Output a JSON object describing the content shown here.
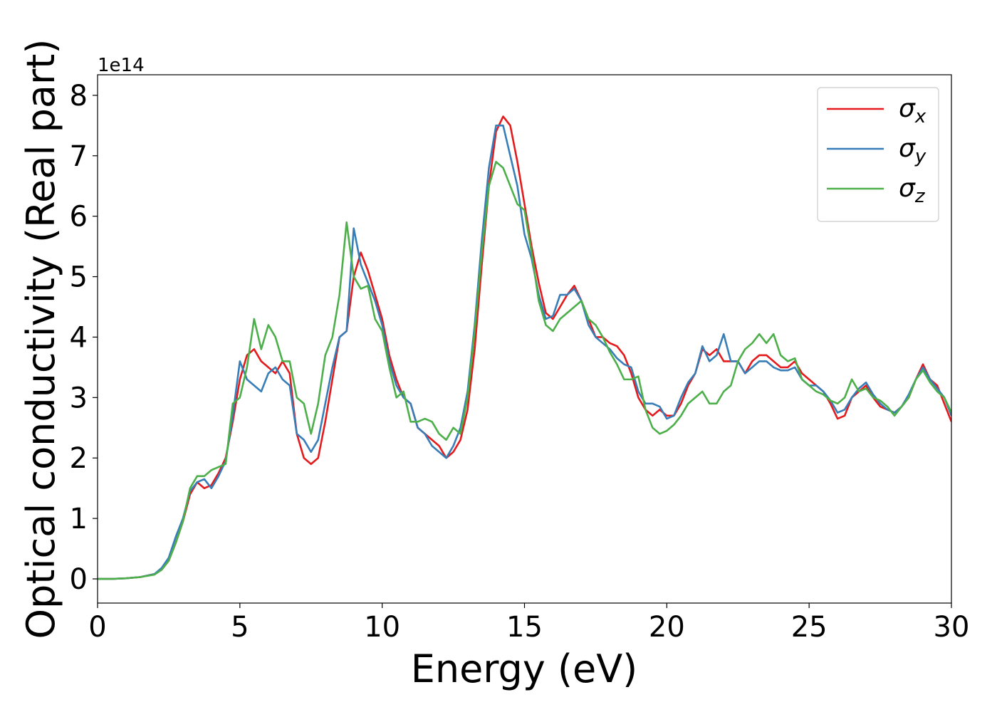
{
  "chart_data": {
    "type": "line",
    "xlabel": "Energy (eV)",
    "ylabel": "Optical conductivity (Real part)",
    "y_offset_label": "1e14",
    "xlim": [
      0,
      30
    ],
    "ylim": [
      -0.4,
      8.34
    ],
    "xticks": [
      0,
      5,
      10,
      15,
      20,
      25,
      30
    ],
    "yticks": [
      0,
      1,
      2,
      3,
      4,
      5,
      6,
      7,
      8
    ],
    "legend": "upper right",
    "grid": false,
    "x": [
      0,
      0.5,
      1,
      1.5,
      2,
      2.25,
      2.5,
      2.75,
      3,
      3.25,
      3.5,
      3.75,
      4,
      4.25,
      4.5,
      4.75,
      5,
      5.25,
      5.5,
      5.75,
      6,
      6.25,
      6.5,
      6.75,
      7,
      7.25,
      7.5,
      7.75,
      8,
      8.25,
      8.5,
      8.75,
      9,
      9.25,
      9.5,
      9.75,
      10,
      10.25,
      10.5,
      10.75,
      11,
      11.25,
      11.5,
      11.75,
      12,
      12.25,
      12.5,
      12.75,
      13,
      13.25,
      13.5,
      13.75,
      14,
      14.25,
      14.5,
      14.75,
      15,
      15.25,
      15.5,
      15.75,
      16,
      16.25,
      16.5,
      16.75,
      17,
      17.25,
      17.5,
      17.75,
      18,
      18.25,
      18.5,
      18.75,
      19,
      19.25,
      19.5,
      19.75,
      20,
      20.25,
      20.5,
      20.75,
      21,
      21.25,
      21.5,
      21.75,
      22,
      22.25,
      22.5,
      22.75,
      23,
      23.25,
      23.5,
      23.75,
      24,
      24.25,
      24.5,
      24.75,
      25,
      25.25,
      25.5,
      25.75,
      26,
      26.25,
      26.5,
      26.75,
      27,
      27.25,
      27.5,
      27.75,
      28,
      28.25,
      28.5,
      28.75,
      29,
      29.25,
      29.5,
      29.75,
      30
    ],
    "series": [
      {
        "name": "σx",
        "color": "#e41a1c",
        "values": [
          0,
          0,
          0.01,
          0.03,
          0.08,
          0.15,
          0.3,
          0.6,
          0.95,
          1.4,
          1.6,
          1.5,
          1.55,
          1.75,
          2.0,
          2.6,
          3.3,
          3.7,
          3.8,
          3.6,
          3.5,
          3.4,
          3.6,
          3.4,
          2.4,
          2.0,
          1.9,
          2.0,
          2.6,
          3.3,
          4.0,
          4.1,
          5.0,
          5.4,
          5.1,
          4.7,
          4.3,
          3.7,
          3.3,
          3.0,
          2.9,
          2.5,
          2.4,
          2.3,
          2.2,
          2.0,
          2.1,
          2.3,
          2.8,
          3.8,
          5.2,
          6.5,
          7.4,
          7.65,
          7.5,
          6.9,
          6.2,
          5.5,
          4.9,
          4.4,
          4.3,
          4.5,
          4.7,
          4.85,
          4.6,
          4.3,
          4.0,
          4.0,
          3.9,
          3.85,
          3.7,
          3.4,
          3.0,
          2.8,
          2.7,
          2.8,
          2.7,
          2.7,
          2.9,
          3.2,
          3.4,
          3.8,
          3.7,
          3.8,
          3.6,
          3.6,
          3.6,
          3.4,
          3.6,
          3.7,
          3.7,
          3.6,
          3.5,
          3.5,
          3.6,
          3.4,
          3.3,
          3.2,
          3.1,
          2.9,
          2.65,
          2.7,
          3.0,
          3.1,
          3.2,
          3.0,
          2.85,
          2.8,
          2.75,
          2.85,
          3.0,
          3.3,
          3.55,
          3.3,
          3.2,
          2.9,
          2.6
        ]
      },
      {
        "name": "σy",
        "color": "#377eb8",
        "values": [
          0,
          0,
          0.01,
          0.03,
          0.08,
          0.18,
          0.35,
          0.7,
          1.0,
          1.45,
          1.6,
          1.65,
          1.5,
          1.7,
          1.95,
          2.7,
          3.6,
          3.3,
          3.2,
          3.1,
          3.4,
          3.5,
          3.3,
          3.2,
          2.4,
          2.3,
          2.1,
          2.3,
          2.9,
          3.5,
          4.0,
          4.1,
          5.8,
          5.2,
          4.9,
          4.6,
          4.2,
          3.6,
          3.2,
          3.0,
          2.9,
          2.5,
          2.4,
          2.2,
          2.1,
          2.0,
          2.2,
          2.5,
          3.1,
          4.2,
          5.6,
          6.8,
          7.5,
          7.5,
          7.0,
          6.5,
          5.7,
          5.3,
          4.7,
          4.3,
          4.35,
          4.7,
          4.7,
          4.8,
          4.6,
          4.2,
          4.0,
          3.9,
          3.8,
          3.65,
          3.55,
          3.5,
          3.1,
          2.9,
          2.9,
          2.85,
          2.65,
          2.7,
          3.0,
          3.25,
          3.4,
          3.85,
          3.6,
          3.7,
          4.05,
          3.6,
          3.6,
          3.4,
          3.5,
          3.6,
          3.6,
          3.5,
          3.45,
          3.45,
          3.5,
          3.3,
          3.2,
          3.2,
          3.1,
          2.95,
          2.75,
          2.8,
          3.0,
          3.15,
          3.25,
          3.05,
          2.9,
          2.8,
          2.75,
          2.85,
          3.05,
          3.3,
          3.5,
          3.3,
          3.15,
          3.0,
          2.7
        ]
      },
      {
        "name": "σz",
        "color": "#4daf4a",
        "values": [
          0,
          0,
          0.01,
          0.03,
          0.07,
          0.15,
          0.3,
          0.6,
          0.95,
          1.5,
          1.7,
          1.7,
          1.8,
          1.85,
          1.9,
          2.9,
          3.0,
          3.5,
          4.3,
          3.8,
          4.2,
          4.0,
          3.6,
          3.6,
          3.0,
          2.9,
          2.4,
          2.9,
          3.7,
          4.0,
          4.7,
          5.9,
          5.0,
          4.8,
          4.85,
          4.3,
          4.1,
          3.5,
          3.0,
          3.1,
          2.6,
          2.6,
          2.65,
          2.6,
          2.4,
          2.3,
          2.5,
          2.4,
          3.0,
          4.1,
          5.4,
          6.5,
          6.9,
          6.8,
          6.5,
          6.2,
          6.1,
          5.4,
          4.6,
          4.2,
          4.1,
          4.3,
          4.4,
          4.5,
          4.6,
          4.3,
          4.2,
          4.0,
          3.75,
          3.55,
          3.3,
          3.3,
          3.35,
          2.8,
          2.5,
          2.4,
          2.45,
          2.55,
          2.7,
          2.9,
          3.0,
          3.1,
          2.9,
          2.9,
          3.1,
          3.2,
          3.6,
          3.8,
          3.9,
          4.05,
          3.9,
          4.05,
          3.7,
          3.6,
          3.65,
          3.3,
          3.2,
          3.1,
          3.05,
          2.95,
          2.9,
          3.0,
          3.3,
          3.1,
          3.15,
          3.0,
          2.95,
          2.85,
          2.7,
          2.85,
          3.0,
          3.3,
          3.45,
          3.25,
          3.1,
          3.0,
          2.75
        ]
      }
    ]
  }
}
